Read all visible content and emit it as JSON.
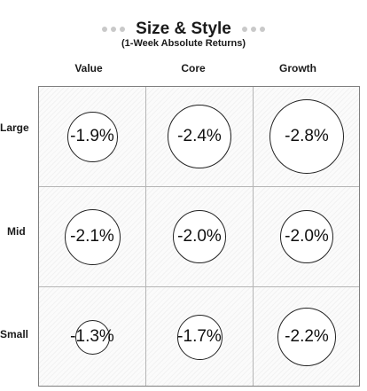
{
  "chart_data": {
    "type": "heatmap",
    "title": "Size & Style",
    "subtitle": "(1-Week Absolute Returns)",
    "columns": [
      "Value",
      "Core",
      "Growth"
    ],
    "rows": [
      "Large",
      "Mid",
      "Small"
    ],
    "values": [
      [
        -1.9,
        -2.4,
        -2.8
      ],
      [
        -2.1,
        -2.0,
        -2.0
      ],
      [
        -1.3,
        -1.7,
        -2.2
      ]
    ],
    "labels": [
      [
        "-1.9%",
        "-2.4%",
        "-2.8%"
      ],
      [
        "-2.1%",
        "-2.0%",
        "-2.0%"
      ],
      [
        "-1.3%",
        "-1.7%",
        "-2.2%"
      ]
    ],
    "bubble_size_encodes": "absolute value",
    "grid": true,
    "colors": {
      "bubble_fill": "#ffffff",
      "bubble_stroke": "#222222",
      "title_dots": "#c9c9c9"
    }
  }
}
